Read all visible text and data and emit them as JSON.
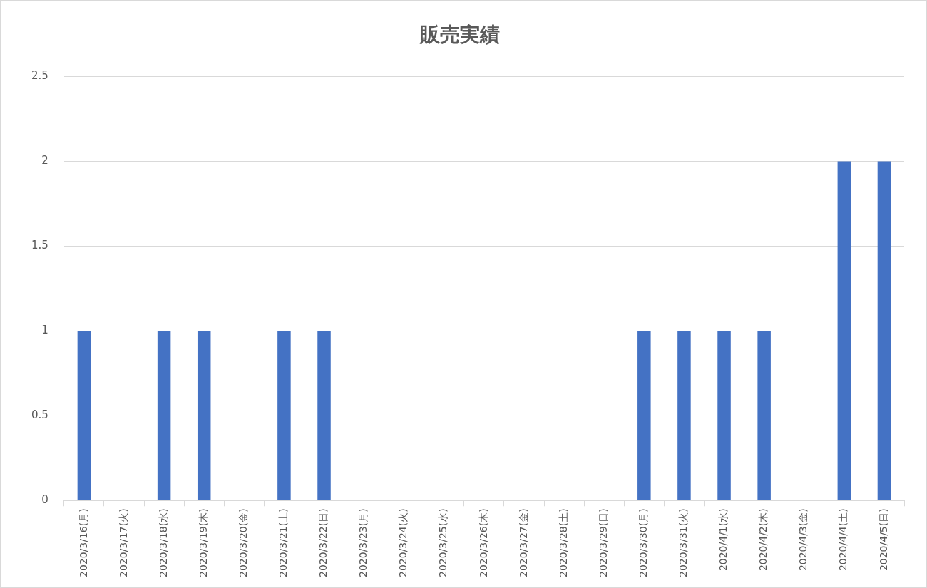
{
  "chart_data": {
    "type": "bar",
    "title": "販売実績",
    "categories": [
      "2020/3/16(月)",
      "2020/3/17(火)",
      "2020/3/18(水)",
      "2020/3/19(木)",
      "2020/3/20(金)",
      "2020/3/21(土)",
      "2020/3/22(日)",
      "2020/3/23(月)",
      "2020/3/24(火)",
      "2020/3/25(水)",
      "2020/3/26(木)",
      "2020/3/27(金)",
      "2020/3/28(土)",
      "2020/3/29(日)",
      "2020/3/30(月)",
      "2020/3/31(火)",
      "2020/4/1(水)",
      "2020/4/2(木)",
      "2020/4/3(金)",
      "2020/4/4(土)",
      "2020/4/5(日)"
    ],
    "values": [
      1,
      0,
      1,
      1,
      0,
      1,
      1,
      0,
      0,
      0,
      0,
      0,
      0,
      0,
      1,
      1,
      1,
      1,
      0,
      2,
      2
    ],
    "color": "#4472c4",
    "ylim": [
      0,
      2.5
    ],
    "yticks": [
      0,
      0.5,
      1,
      1.5,
      2,
      2.5
    ],
    "grid": "y",
    "legend": false
  }
}
